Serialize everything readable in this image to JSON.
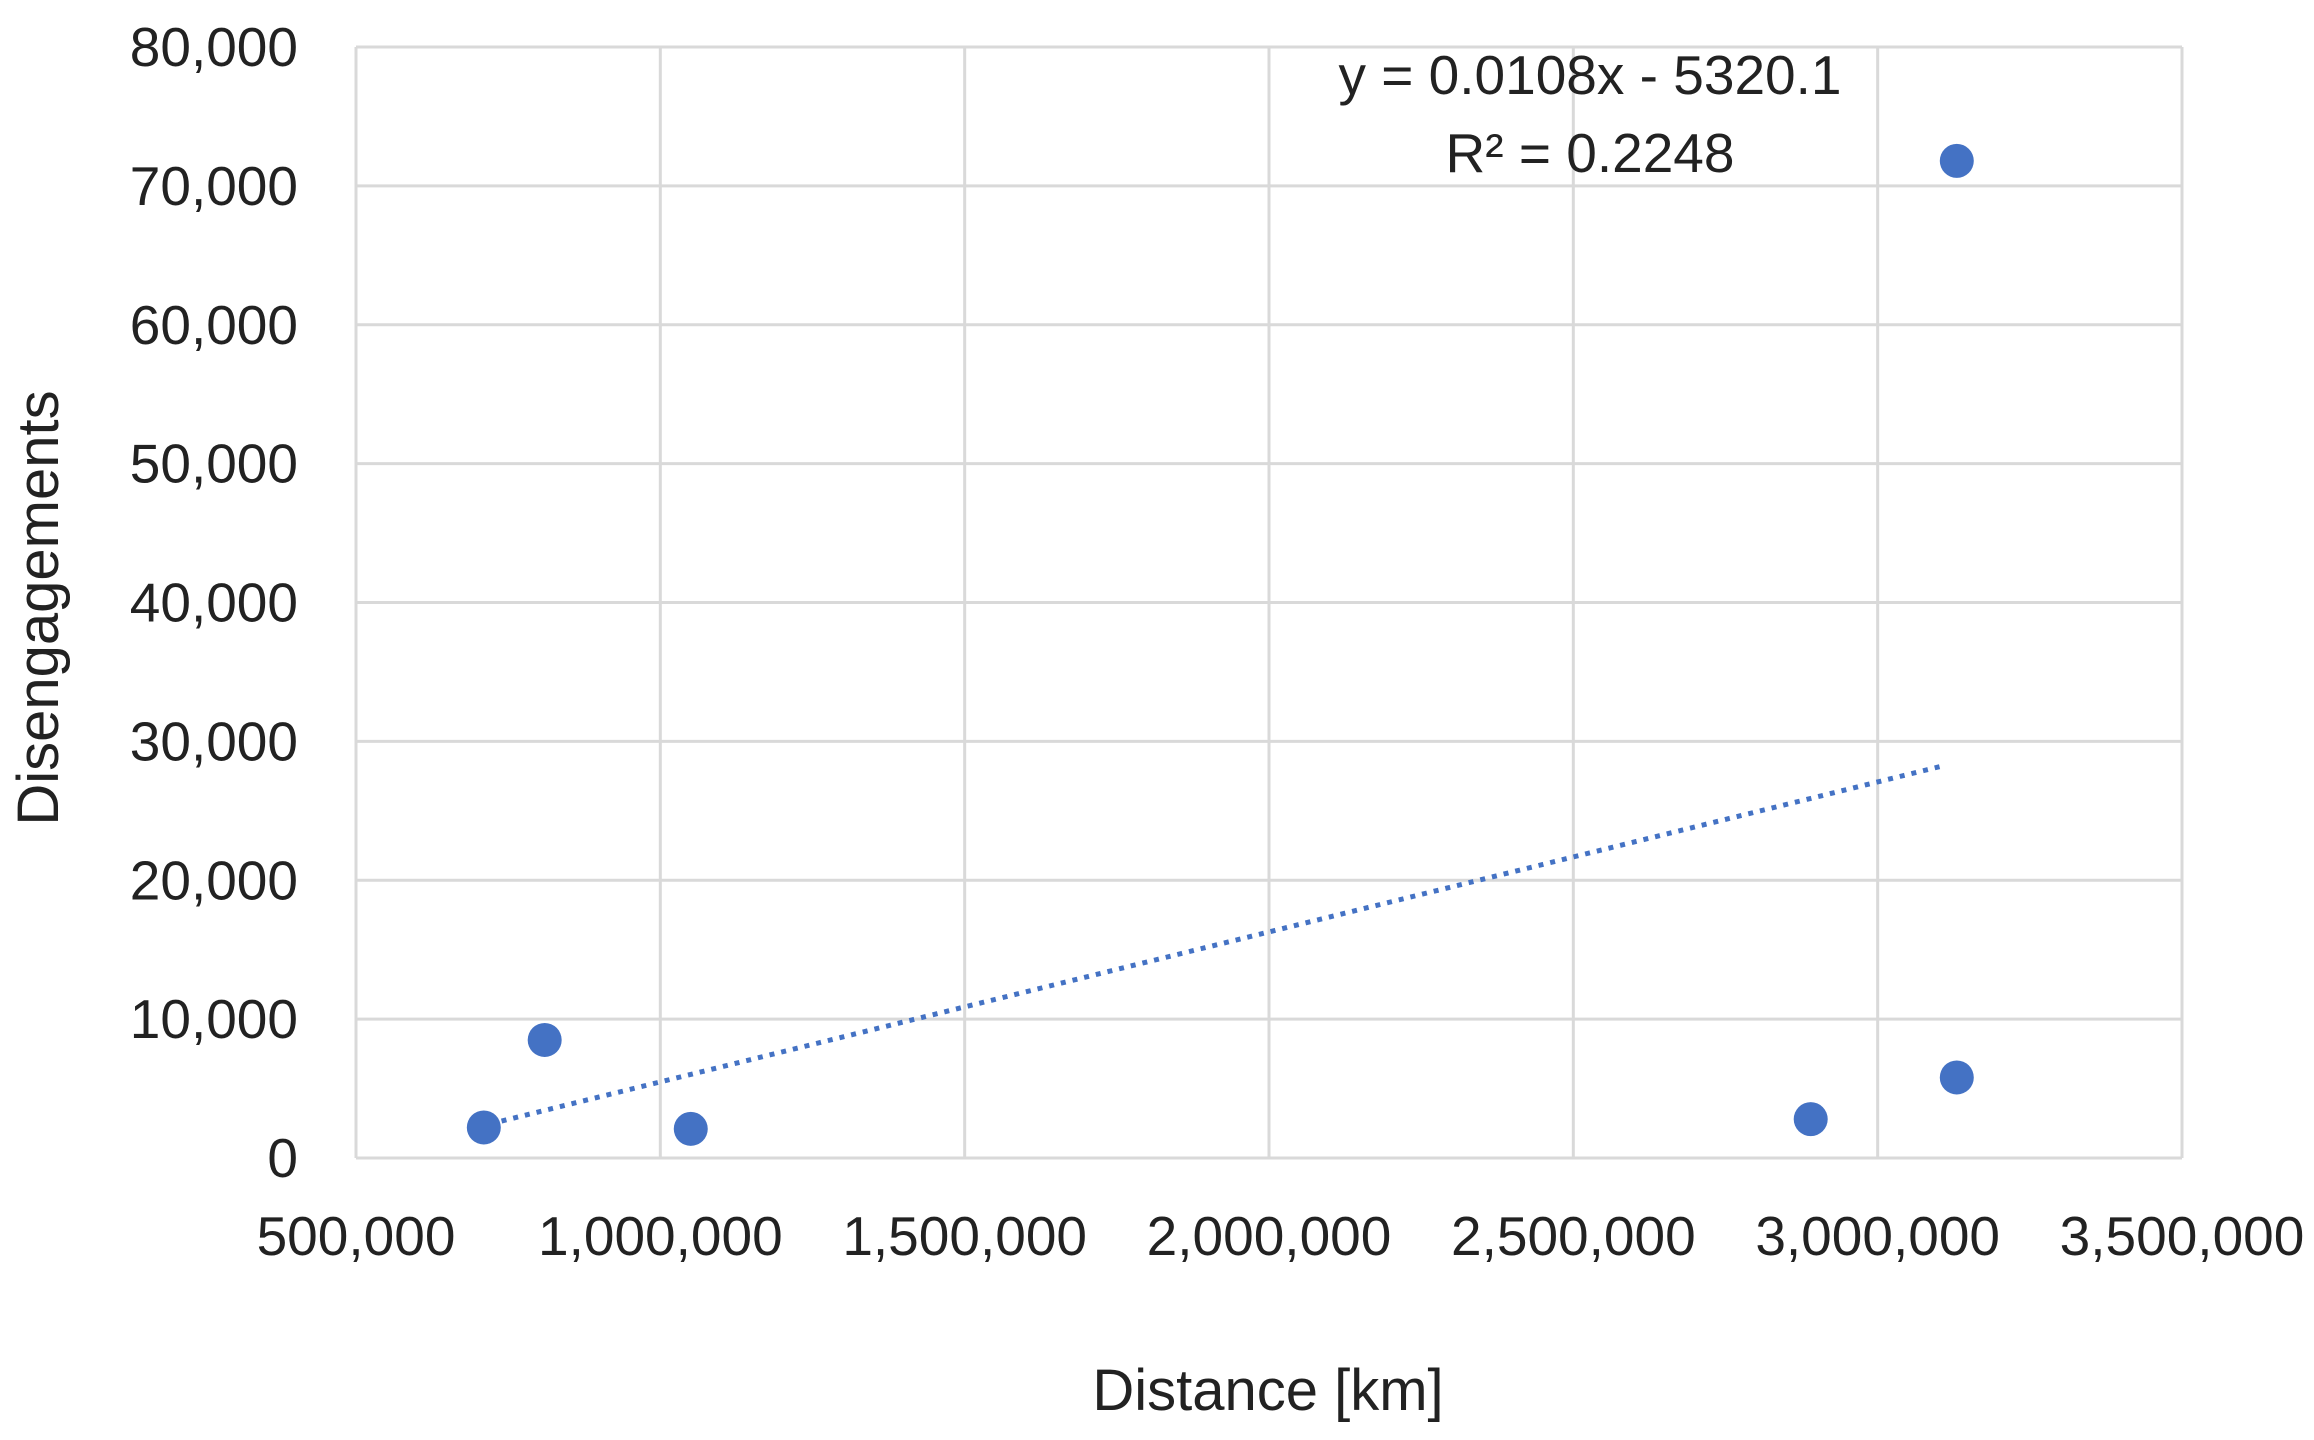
{
  "chart_data": {
    "type": "scatter",
    "title": "",
    "xlabel": "Distance [km]",
    "ylabel": "Disengagements",
    "xlim": [
      500000,
      3500000
    ],
    "ylim": [
      0,
      80000
    ],
    "x_ticks": [
      500000,
      1000000,
      1500000,
      2000000,
      2500000,
      3000000,
      3500000
    ],
    "x_tick_labels": [
      "500,000",
      "1,000,000",
      "1,500,000",
      "2,000,000",
      "2,500,000",
      "3,000,000",
      "3,500,000"
    ],
    "y_ticks": [
      0,
      10000,
      20000,
      30000,
      40000,
      50000,
      60000,
      70000,
      80000
    ],
    "y_tick_labels": [
      "0",
      "10,000",
      "20,000",
      "30,000",
      "40,000",
      "50,000",
      "60,000",
      "70,000",
      "80,000"
    ],
    "grid": true,
    "legend": "none",
    "series": [
      {
        "color": "#4472C4",
        "points": [
          {
            "x": 710000,
            "y": 2200
          },
          {
            "x": 810000,
            "y": 8500
          },
          {
            "x": 1050000,
            "y": 2100
          },
          {
            "x": 2890000,
            "y": 2800
          },
          {
            "x": 3130000,
            "y": 5800
          },
          {
            "x": 3130000,
            "y": 71800
          }
        ]
      }
    ],
    "trendline": {
      "type": "linear",
      "slope": 0.0108,
      "intercept": -5320.1,
      "x_range": [
        720000,
        3110000
      ],
      "style": "dotted",
      "color": "#4472C4"
    },
    "annotations": [
      "y = 0.0108x - 5320.1",
      "R² = 0.2248"
    ]
  }
}
